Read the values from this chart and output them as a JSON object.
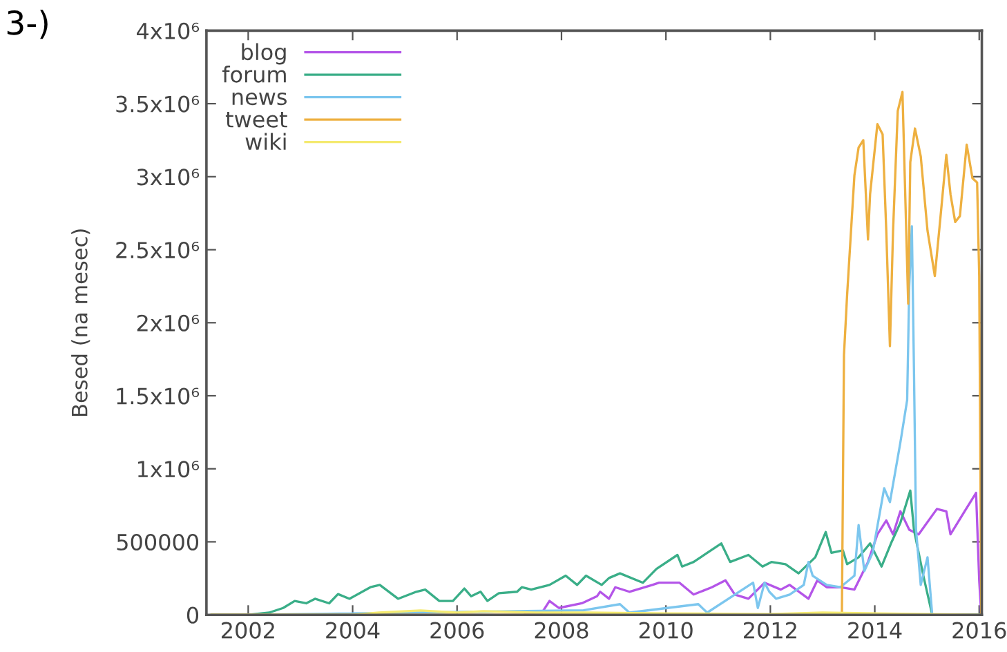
{
  "chart_data": {
    "type": "line",
    "annotations": [
      "3-)"
    ],
    "ylabel": "Besed (na mesec)",
    "xlim": [
      2001.2,
      2016.05
    ],
    "xticks": [
      2002,
      2004,
      2006,
      2008,
      2010,
      2012,
      2014,
      2016
    ],
    "ylim": [
      0,
      4000000
    ],
    "yticks": [
      0,
      500000,
      {
        "value": 1000000,
        "label": "1x10⁶"
      },
      {
        "value": 1500000,
        "label": "1.5x10⁶"
      },
      {
        "value": 2000000,
        "label": "2x10⁶"
      },
      {
        "value": 2500000,
        "label": "2.5x10⁶"
      },
      {
        "value": 3000000,
        "label": "3x10⁶"
      },
      {
        "value": 3500000,
        "label": "3.5x10⁶"
      },
      {
        "value": 4000000,
        "label": "4x10⁶"
      }
    ],
    "grid": false,
    "legend": "top left",
    "marker": "none",
    "line_style": "solid",
    "series": [
      {
        "name": "blog",
        "color": "#b455e8",
        "x": [
          2007.3,
          2007.6,
          2007.77,
          2007.95,
          2008.39,
          2008.68,
          2008.74,
          2008.91,
          2009.03,
          2009.3,
          2009.74,
          2009.87,
          2010.26,
          2010.53,
          2010.88,
          2011.14,
          2011.32,
          2011.58,
          2011.89,
          2012.2,
          2012.37,
          2012.73,
          2012.9,
          2013.08,
          2013.34,
          2013.61,
          2013.87,
          2014.05,
          2014.22,
          2014.35,
          2014.49,
          2014.66,
          2014.84,
          2015.19,
          2015.37,
          2015.45,
          2015.72,
          2015.94,
          2016.0,
          2016.04
        ],
        "values": [
          0,
          0,
          95000,
          47000,
          79000,
          127000,
          158000,
          110000,
          189000,
          158000,
          205000,
          220000,
          220000,
          139000,
          189000,
          236000,
          139000,
          110000,
          220000,
          173000,
          205000,
          110000,
          236000,
          189000,
          189000,
          173000,
          362000,
          551000,
          646000,
          551000,
          709000,
          583000,
          551000,
          725000,
          709000,
          551000,
          709000,
          835000,
          236000,
          0
        ]
      },
      {
        "name": "forum",
        "color": "#3aae88",
        "x": [
          2001.3,
          2002.0,
          2002.4,
          2002.67,
          2002.89,
          2003.11,
          2003.28,
          2003.55,
          2003.72,
          2003.94,
          2004.34,
          2004.52,
          2004.87,
          2005.22,
          2005.39,
          2005.66,
          2005.92,
          2006.14,
          2006.27,
          2006.45,
          2006.58,
          2006.8,
          2007.15,
          2007.24,
          2007.42,
          2007.77,
          2008.08,
          2008.3,
          2008.47,
          2008.77,
          2008.91,
          2009.12,
          2009.56,
          2009.82,
          2010.22,
          2010.31,
          2010.53,
          2011.06,
          2011.23,
          2011.58,
          2011.85,
          2012.02,
          2012.29,
          2012.54,
          2012.86,
          2013.06,
          2013.17,
          2013.39,
          2013.47,
          2013.69,
          2013.91,
          2014.13,
          2014.31,
          2014.49,
          2014.68,
          2014.75,
          2014.93,
          2015.1,
          2016.0
        ],
        "values": [
          0,
          0,
          15000,
          47000,
          95000,
          79000,
          110000,
          79000,
          142000,
          110000,
          189000,
          205000,
          110000,
          158000,
          173000,
          95000,
          95000,
          180000,
          127000,
          158000,
          95000,
          148000,
          158000,
          189000,
          173000,
          205000,
          268000,
          205000,
          268000,
          205000,
          252000,
          284000,
          220000,
          315000,
          410000,
          331000,
          362000,
          489000,
          362000,
          410000,
          331000,
          362000,
          347000,
          284000,
          394000,
          567000,
          425000,
          441000,
          347000,
          394000,
          489000,
          331000,
          489000,
          630000,
          851000,
          583000,
          268000,
          0,
          0
        ]
      },
      {
        "name": "news",
        "color": "#7cc6ee",
        "x": [
          2002.0,
          2008.42,
          2009.12,
          2009.3,
          2010.62,
          2010.79,
          2011.67,
          2011.76,
          2011.89,
          2011.98,
          2012.11,
          2012.37,
          2012.64,
          2012.73,
          2012.81,
          2013.08,
          2013.34,
          2013.61,
          2013.69,
          2013.8,
          2013.96,
          2014.18,
          2014.29,
          2014.49,
          2014.62,
          2014.66,
          2014.71,
          2014.75,
          2014.79,
          2014.88,
          2015.01,
          2015.1,
          2016.0
        ],
        "values": [
          0,
          31000,
          73000,
          15000,
          73000,
          15000,
          220000,
          47000,
          220000,
          158000,
          110000,
          139000,
          205000,
          362000,
          268000,
          205000,
          189000,
          268000,
          615000,
          300000,
          426000,
          867000,
          772000,
          1180000,
          1470000,
          2250000,
          2660000,
          1690000,
          583000,
          205000,
          394000,
          0,
          0
        ]
      },
      {
        "name": "tweet",
        "color": "#eeb040",
        "x": [
          2001.3,
          2013.37,
          2013.41,
          2013.47,
          2013.61,
          2013.69,
          2013.78,
          2013.87,
          2013.91,
          2014.05,
          2014.15,
          2014.22,
          2014.29,
          2014.35,
          2014.44,
          2014.53,
          2014.64,
          2014.68,
          2014.77,
          2014.88,
          2015.01,
          2015.15,
          2015.26,
          2015.37,
          2015.45,
          2015.54,
          2015.63,
          2015.76,
          2015.87,
          2015.96,
          2016.0,
          2016.04
        ],
        "values": [
          0,
          0,
          1780000,
          2190000,
          3010000,
          3200000,
          3250000,
          2570000,
          2880000,
          3360000,
          3290000,
          2630000,
          1840000,
          2630000,
          3450000,
          3580000,
          2130000,
          3100000,
          3330000,
          3140000,
          2630000,
          2320000,
          2730000,
          3150000,
          2880000,
          2690000,
          2730000,
          3220000,
          2990000,
          2960000,
          2320000,
          0
        ]
      },
      {
        "name": "wiki",
        "color": "#f4ea70",
        "x": [
          2001.3,
          2004.0,
          2004.5,
          2005.3,
          2006.0,
          2006.5,
          2007.5,
          2008.5,
          2010.0,
          2012.0,
          2013.0,
          2015.0,
          2016.0
        ],
        "values": [
          0,
          0,
          15000,
          30000,
          15000,
          25000,
          15000,
          15000,
          10000,
          5000,
          15000,
          5000,
          0
        ]
      }
    ]
  }
}
